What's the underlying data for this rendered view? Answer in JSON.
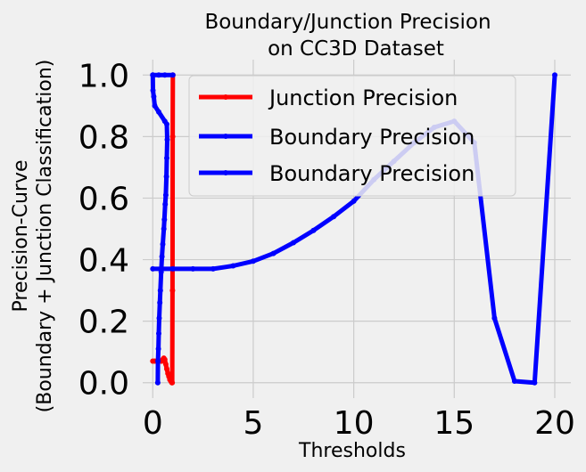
{
  "chart_data": {
    "type": "line",
    "title_lines": [
      "Boundary/Junction Precision",
      "on CC3D Dataset"
    ],
    "xlabel": "Thresholds",
    "ylabel_lines": [
      "Precision-Curve",
      "(Boundary + Junction Classification)"
    ],
    "xlim": [
      -0.5,
      20.8
    ],
    "ylim": [
      -0.05,
      1.05
    ],
    "xticks": [
      0,
      5,
      10,
      15,
      20
    ],
    "xtick_labels": [
      "0",
      "5",
      "10",
      "15",
      "20"
    ],
    "yticks": [
      0.0,
      0.2,
      0.4,
      0.6,
      0.8,
      1.0
    ],
    "ytick_labels": [
      "0.0",
      "0.2",
      "0.4",
      "0.6",
      "0.8",
      "1.0"
    ],
    "grid": true,
    "legend_position": "top-right",
    "series": [
      {
        "name": "Junction Precision",
        "color": "#ff0000",
        "points": [
          [
            0.0,
            0.07
          ],
          [
            0.1,
            0.07
          ],
          [
            0.2,
            0.07
          ],
          [
            0.3,
            0.07
          ],
          [
            0.4,
            0.07
          ],
          [
            0.45,
            0.07
          ],
          [
            0.5,
            0.075
          ],
          [
            0.55,
            0.08
          ],
          [
            0.6,
            0.075
          ],
          [
            0.65,
            0.06
          ],
          [
            0.7,
            0.045
          ],
          [
            0.75,
            0.03
          ],
          [
            0.8,
            0.02
          ],
          [
            0.85,
            0.01
          ],
          [
            0.9,
            0.005
          ],
          [
            0.95,
            0.0
          ],
          [
            0.97,
            0.0
          ],
          [
            0.98,
            0.3
          ],
          [
            0.99,
            0.8
          ],
          [
            1.0,
            1.0
          ]
        ]
      },
      {
        "name": "Boundary Precision",
        "color": "#0000ff",
        "points": [
          [
            0.0,
            1.0
          ],
          [
            0.01,
            0.95
          ],
          [
            0.05,
            0.93
          ],
          [
            0.1,
            0.9
          ],
          [
            0.3,
            0.88
          ],
          [
            0.6,
            0.85
          ],
          [
            0.7,
            0.84
          ],
          [
            0.72,
            0.79
          ],
          [
            0.7,
            0.73
          ],
          [
            0.68,
            0.67
          ],
          [
            0.65,
            0.61
          ],
          [
            0.62,
            0.58
          ],
          [
            0.58,
            0.53
          ],
          [
            0.55,
            0.5
          ],
          [
            0.5,
            0.45
          ],
          [
            0.46,
            0.41
          ],
          [
            0.42,
            0.36
          ],
          [
            0.38,
            0.3
          ],
          [
            0.35,
            0.26
          ],
          [
            0.32,
            0.21
          ],
          [
            0.3,
            0.16
          ],
          [
            0.28,
            0.11
          ],
          [
            0.26,
            0.07
          ],
          [
            0.25,
            0.0
          ]
        ]
      },
      {
        "name": "Boundary Precision",
        "color": "#0000ff",
        "points": [
          [
            0,
            0.37
          ],
          [
            1,
            0.37
          ],
          [
            2,
            0.37
          ],
          [
            3,
            0.37
          ],
          [
            4,
            0.38
          ],
          [
            5,
            0.395
          ],
          [
            6,
            0.42
          ],
          [
            7,
            0.455
          ],
          [
            8,
            0.495
          ],
          [
            9,
            0.54
          ],
          [
            10,
            0.59
          ],
          [
            11,
            0.66
          ],
          [
            12,
            0.72
          ],
          [
            13,
            0.78
          ],
          [
            14,
            0.83
          ],
          [
            15,
            0.85
          ],
          [
            16,
            0.78
          ],
          [
            17,
            0.21
          ],
          [
            18,
            0.005
          ],
          [
            19,
            0.0
          ],
          [
            20,
            1.0
          ]
        ]
      },
      {
        "name": "",
        "color": "#0000ff",
        "points": [
          [
            0.0,
            1.0
          ],
          [
            0.3,
            1.0
          ],
          [
            0.6,
            1.0
          ],
          [
            1.0,
            1.0
          ]
        ]
      }
    ]
  }
}
